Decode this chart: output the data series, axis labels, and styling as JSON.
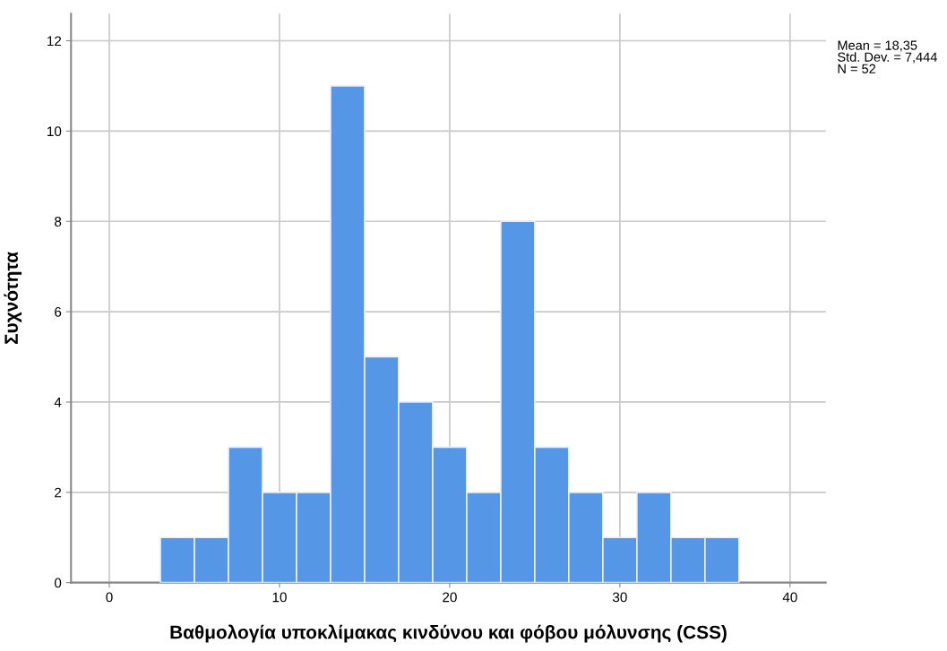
{
  "chart_data": {
    "type": "histogram",
    "xlabel": "Βαθμολογία υποκλίμακας κινδύνου και φόβου μόλυνσης (CSS)",
    "ylabel": "Συχνότητα",
    "bins": [
      3,
      5,
      7,
      9,
      11,
      13,
      15,
      17,
      19,
      21,
      23,
      25,
      27,
      29,
      31,
      33,
      35,
      37
    ],
    "values": [
      1,
      1,
      3,
      2,
      2,
      11,
      5,
      4,
      3,
      2,
      8,
      3,
      2,
      1,
      2,
      1,
      1
    ],
    "color": "#5596e6",
    "xlim": [
      -2.25,
      42.1
    ],
    "ylim": [
      0,
      12.6
    ],
    "xticks": [
      0,
      10,
      20,
      30,
      40
    ],
    "yticks": [
      0,
      2,
      4,
      6,
      8,
      10,
      12
    ],
    "grid": true,
    "annotations": [
      "Mean = 18,35\nStd. Dev. = 7,444\nN = 52"
    ]
  }
}
